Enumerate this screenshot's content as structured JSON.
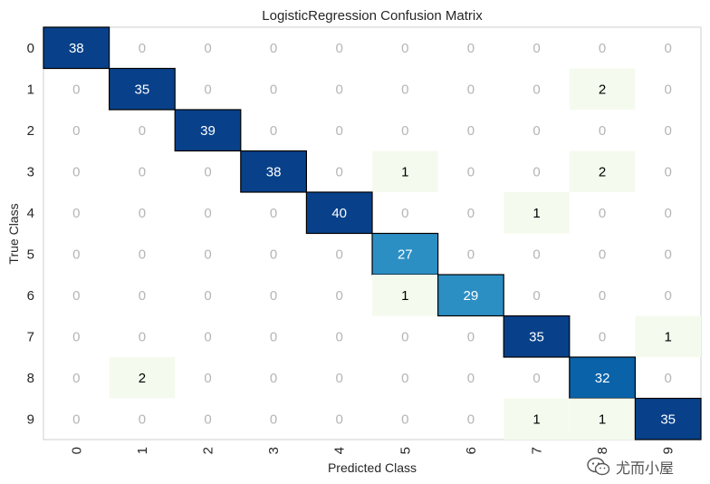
{
  "chart_data": {
    "type": "heatmap",
    "title": "LogisticRegression Confusion Matrix",
    "xlabel": "Predicted Class",
    "ylabel": "True Class",
    "x_tick_labels": [
      "0",
      "1",
      "2",
      "3",
      "4",
      "5",
      "6",
      "7",
      "8",
      "9"
    ],
    "y_tick_labels": [
      "0",
      "1",
      "2",
      "3",
      "4",
      "5",
      "6",
      "7",
      "8",
      "9"
    ],
    "matrix": [
      [
        38,
        0,
        0,
        0,
        0,
        0,
        0,
        0,
        0,
        0
      ],
      [
        0,
        35,
        0,
        0,
        0,
        0,
        0,
        0,
        2,
        0
      ],
      [
        0,
        0,
        39,
        0,
        0,
        0,
        0,
        0,
        0,
        0
      ],
      [
        0,
        0,
        0,
        38,
        0,
        1,
        0,
        0,
        2,
        0
      ],
      [
        0,
        0,
        0,
        0,
        40,
        0,
        0,
        1,
        0,
        0
      ],
      [
        0,
        0,
        0,
        0,
        0,
        27,
        0,
        0,
        0,
        0
      ],
      [
        0,
        0,
        0,
        0,
        0,
        1,
        29,
        0,
        0,
        0
      ],
      [
        0,
        0,
        0,
        0,
        0,
        0,
        0,
        35,
        0,
        1
      ],
      [
        0,
        2,
        0,
        0,
        0,
        0,
        0,
        0,
        32,
        0
      ],
      [
        0,
        0,
        0,
        0,
        0,
        0,
        0,
        1,
        1,
        35
      ]
    ],
    "colormap": {
      "diagonal": [
        "#2c8fc4",
        "#0a62a8",
        "#08418a"
      ],
      "offdiagonal_nonzero": "#f4fbee",
      "zero_text": "#b5b5b5",
      "light_text": "#000000",
      "dark_text": "#ffffff"
    }
  },
  "watermark": {
    "text": "尤而小屋",
    "icon": "wechat-icon"
  }
}
